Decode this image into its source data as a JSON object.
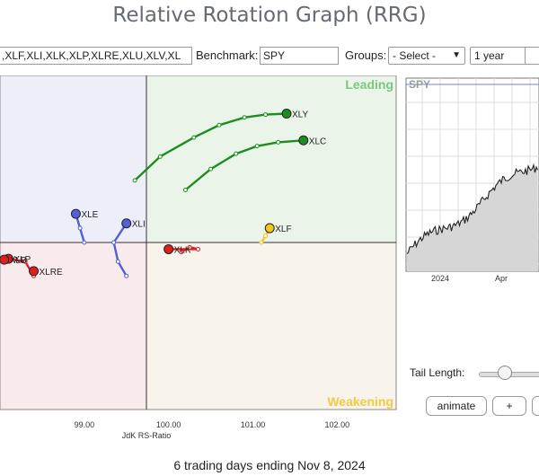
{
  "title": "Relative Rotation Graph (RRG)",
  "controls": {
    "symbols_value": "XLF,XLI,XLK,XLP,XLRE,XLU,XLV,XL",
    "symbols_value_display": ",XLF,XLI,XLK,XLP,XLRE,XLU,XLV,XL",
    "benchmark_label": "Benchmark:",
    "benchmark_value": "SPY",
    "groups_label": "Groups:",
    "groups_value": "- Select -",
    "period_value": "1 year"
  },
  "quadrants": {
    "leading": "Leading",
    "weakening": "Weakening"
  },
  "colors": {
    "leading_bg": "#eaf4e8",
    "weakening_bg": "#f8f4ec",
    "lagging_bg": "#f9eaec",
    "improving_bg": "#eeeef9",
    "leading_text": "#7cc77c",
    "weakening_text": "#f5c842",
    "green": "#1e8c1e",
    "red": "#dd1f1f",
    "blue": "#5060d8",
    "yellow": "#f4c61a"
  },
  "chart_data": {
    "type": "scatter",
    "xlabel": "JdK RS-Ratio",
    "x_ticks": [
      "99.00",
      "100.00",
      "101.00",
      "102.00"
    ],
    "xlim": [
      98.0,
      102.7
    ],
    "ylim": [
      98.2,
      101.7
    ],
    "series": [
      {
        "name": "XLY",
        "color": "green",
        "x": [
          99.6,
          99.9,
          100.3,
          100.6,
          100.9,
          101.15,
          101.4
        ],
        "y": [
          100.6,
          100.85,
          101.05,
          101.18,
          101.26,
          101.29,
          101.3
        ]
      },
      {
        "name": "XLC",
        "color": "green",
        "x": [
          100.2,
          100.5,
          100.8,
          101.05,
          101.3,
          101.6
        ],
        "y": [
          100.5,
          100.72,
          100.88,
          100.96,
          101.0,
          101.02
        ]
      },
      {
        "name": "XLF",
        "color": "yellow",
        "x": [
          101.1,
          101.15,
          101.2
        ],
        "y": [
          99.95,
          100.02,
          100.1
        ]
      },
      {
        "name": "XLE",
        "color": "blue",
        "x": [
          99.0,
          98.95,
          98.9
        ],
        "y": [
          99.95,
          100.1,
          100.25
        ]
      },
      {
        "name": "XLI",
        "color": "blue",
        "x": [
          99.5,
          99.4,
          99.35,
          99.5
        ],
        "y": [
          99.6,
          99.75,
          99.95,
          100.15
        ]
      },
      {
        "name": "XLK",
        "color": "red",
        "x": [
          100.15,
          100.25,
          100.35,
          100.0
        ],
        "y": [
          99.85,
          99.9,
          99.88,
          99.88
        ]
      },
      {
        "name": "XLP",
        "color": "red",
        "x": [
          98.4,
          98.3,
          98.1
        ],
        "y": [
          99.6,
          99.75,
          99.78
        ]
      },
      {
        "name": "XLB",
        "color": "red",
        "x": [
          98.05
        ],
        "y": [
          99.77
        ]
      },
      {
        "name": "XLRE",
        "color": "red",
        "x": [
          98.4
        ],
        "y": [
          99.65
        ]
      }
    ]
  },
  "spy_chart": {
    "label": "SPY",
    "x_ticks": [
      "2024",
      "Apr"
    ]
  },
  "tail_length_label": "Tail Length:",
  "buttons": {
    "animate": "animate",
    "plus": "+"
  },
  "footer": "6 trading days ending Nov 8, 2024"
}
